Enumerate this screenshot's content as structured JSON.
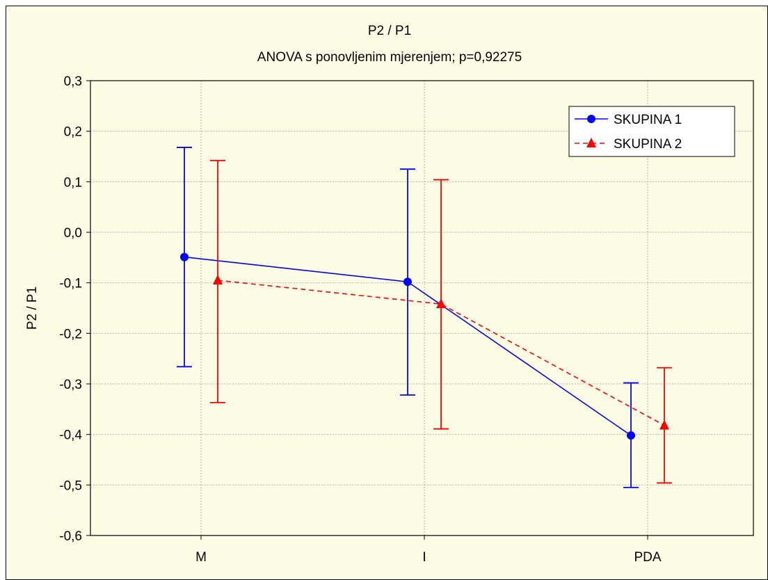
{
  "chart_data": {
    "type": "line",
    "title": "P2 / P1",
    "subtitle": "ANOVA s ponovljenim mjerenjem;   p=0,92275",
    "xlabel": "",
    "ylabel": "P2 / P1",
    "categories": [
      "M",
      "I",
      "PDA"
    ],
    "ylim": [
      -0.6,
      0.3
    ],
    "yticks": [
      0.3,
      0.2,
      0.1,
      0.0,
      -0.1,
      -0.2,
      -0.3,
      -0.4,
      -0.5,
      -0.6
    ],
    "ytick_labels": [
      "0,3",
      "0,2",
      "0,1",
      "0,0",
      "-0,1",
      "-0,2",
      "-0,3",
      "-0,4",
      "-0,5",
      "-0,6"
    ],
    "grid": true,
    "legend_position": "top-right",
    "series": [
      {
        "name": "SKUPINA 1",
        "color": "#0000ff",
        "marker": "circle",
        "line_style": "solid",
        "values": [
          -0.049,
          -0.098,
          -0.402
        ],
        "error_low": [
          -0.266,
          -0.322,
          -0.505
        ],
        "error_high": [
          0.168,
          0.125,
          -0.298
        ]
      },
      {
        "name": "SKUPINA 2",
        "color": "#ff0000",
        "marker": "triangle",
        "line_style": "dashed",
        "values": [
          -0.095,
          -0.142,
          -0.382
        ],
        "error_low": [
          -0.337,
          -0.389,
          -0.496
        ],
        "error_high": [
          0.142,
          0.104,
          -0.268
        ]
      }
    ]
  }
}
